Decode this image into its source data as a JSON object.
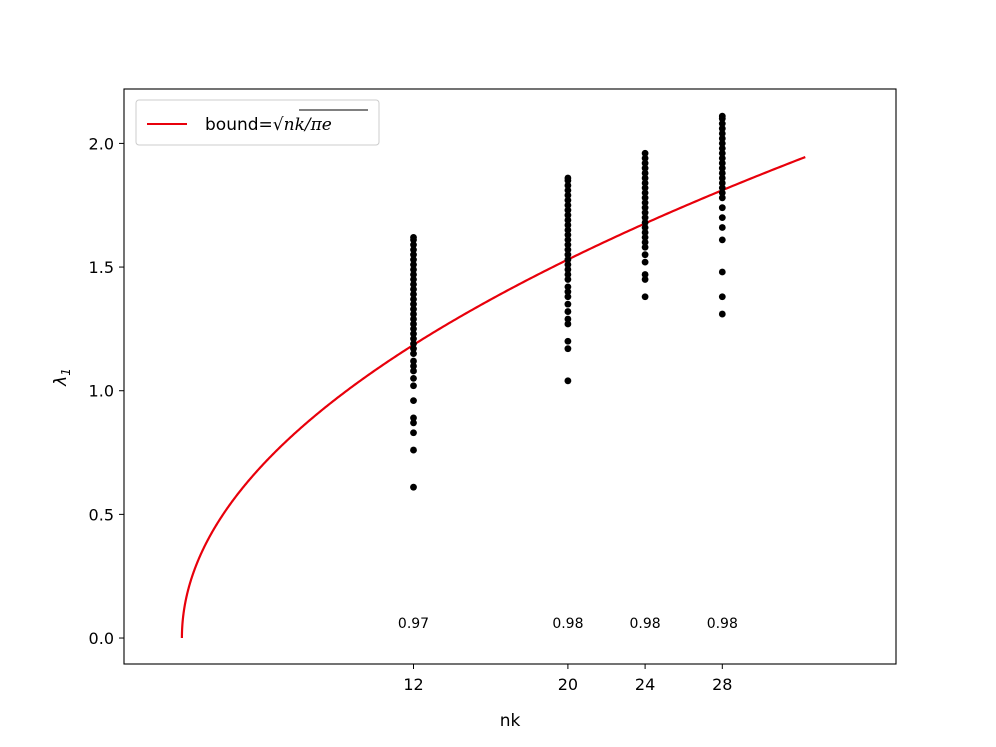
{
  "chart_data": {
    "type": "scatter",
    "xlabel": "nk",
    "ylabel": "λ",
    "ylabel_sub": "1",
    "xlim": [
      -3,
      37
    ],
    "ylim": [
      -0.105,
      2.22
    ],
    "xticks": [
      12,
      20,
      24,
      28
    ],
    "yticks": [
      0.0,
      0.5,
      1.0,
      1.5,
      2.0
    ],
    "ytick_labels": [
      "0.0",
      "0.5",
      "1.0",
      "1.5",
      "2.0"
    ],
    "grid": false,
    "legend": {
      "placement": "top-left",
      "label_prefix": "bound=",
      "label_math": "√nk/πe",
      "label_radicand": "nk/πe"
    },
    "series": [
      {
        "kind": "line",
        "color": "#e8000b",
        "formula": "sqrt(nk/(pi*e))",
        "x_range": [
          0,
          32.3
        ]
      },
      {
        "kind": "scatter",
        "color": "#000000",
        "groups": [
          {
            "x": 12,
            "y": [
              0.61,
              0.76,
              0.83,
              0.87,
              0.89,
              0.96,
              1.02,
              1.05,
              1.08,
              1.1,
              1.12,
              1.15,
              1.17,
              1.19,
              1.21,
              1.23,
              1.25,
              1.27,
              1.29,
              1.31,
              1.33,
              1.35,
              1.37,
              1.39,
              1.41,
              1.43,
              1.45,
              1.47,
              1.49,
              1.51,
              1.53,
              1.55,
              1.57,
              1.59,
              1.61,
              1.62
            ]
          },
          {
            "x": 20,
            "y": [
              1.04,
              1.17,
              1.2,
              1.27,
              1.29,
              1.32,
              1.35,
              1.38,
              1.4,
              1.42,
              1.45,
              1.47,
              1.49,
              1.51,
              1.53,
              1.55,
              1.57,
              1.59,
              1.61,
              1.63,
              1.65,
              1.67,
              1.69,
              1.71,
              1.73,
              1.75,
              1.77,
              1.79,
              1.81,
              1.83,
              1.85,
              1.86
            ]
          },
          {
            "x": 24,
            "y": [
              1.38,
              1.45,
              1.47,
              1.52,
              1.55,
              1.58,
              1.6,
              1.62,
              1.64,
              1.66,
              1.68,
              1.7,
              1.72,
              1.74,
              1.76,
              1.78,
              1.8,
              1.82,
              1.84,
              1.86,
              1.88,
              1.9,
              1.92,
              1.94,
              1.96
            ]
          },
          {
            "x": 28,
            "y": [
              1.31,
              1.38,
              1.48,
              1.61,
              1.66,
              1.7,
              1.74,
              1.78,
              1.8,
              1.82,
              1.84,
              1.86,
              1.88,
              1.9,
              1.92,
              1.94,
              1.96,
              1.98,
              2.0,
              2.02,
              2.04,
              2.06,
              2.08,
              2.1,
              2.11
            ]
          }
        ]
      }
    ],
    "annotations": [
      {
        "x": 12,
        "y": 0.04,
        "text": "0.97"
      },
      {
        "x": 20,
        "y": 0.04,
        "text": "0.98"
      },
      {
        "x": 24,
        "y": 0.04,
        "text": "0.98"
      },
      {
        "x": 28,
        "y": 0.04,
        "text": "0.98"
      }
    ]
  }
}
